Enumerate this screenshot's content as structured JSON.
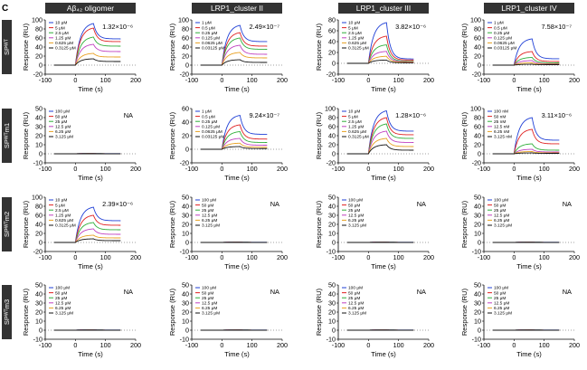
{
  "figure": {
    "panel_letter": "C",
    "column_titles": [
      "Aβ₄₂ oligomer",
      "LRP1_cluster II",
      "LRP1_cluster III",
      "LRP1_cluster IV"
    ],
    "row_titles": [
      "SPᵂᵀ",
      "SPᵂᵀm1",
      "SPᵂᵀm2",
      "SPᵂᵀm3"
    ]
  },
  "colors": {
    "series": [
      "#1f3fd6",
      "#e02020",
      "#2fae3a",
      "#c040c0",
      "#e8a020",
      "#111111"
    ],
    "header_fill": "#333333"
  },
  "chart_data": [
    {
      "type": "line",
      "row": 0,
      "col": 0,
      "xlabel": "Time (s)",
      "ylabel": "Response (RU)",
      "xlim": [
        -100,
        200
      ],
      "ylim": [
        -20,
        100
      ],
      "xticks": [
        -100,
        0,
        100,
        200
      ],
      "yticks": [
        -20,
        0,
        20,
        40,
        60,
        80,
        100
      ],
      "annotation": "1.32×10⁻⁶",
      "legend": [
        "10 μM",
        "5 μM",
        "2.5 μM",
        "1.25 μM",
        "0.625 μM",
        "0.3125 μM"
      ],
      "series": [
        {
          "name": "10 μM",
          "peak": 92,
          "end": 58
        },
        {
          "name": "5 μM",
          "peak": 82,
          "end": 52
        },
        {
          "name": "2.5 μM",
          "peak": 62,
          "end": 42
        },
        {
          "name": "1.25 μM",
          "peak": 46,
          "end": 30
        },
        {
          "name": "0.625 μM",
          "peak": 26,
          "end": 18
        },
        {
          "name": "0.3125 μM",
          "peak": 14,
          "end": 8
        }
      ]
    },
    {
      "type": "line",
      "row": 0,
      "col": 1,
      "xlabel": "Time (s)",
      "ylabel": "Response (RU)",
      "xlim": [
        -100,
        200
      ],
      "ylim": [
        -20,
        100
      ],
      "xticks": [
        -100,
        0,
        100,
        200
      ],
      "yticks": [
        -20,
        0,
        20,
        40,
        60,
        80,
        100
      ],
      "annotation": "2.49×10⁻⁷",
      "legend": [
        "1 μM",
        "0.5 μM",
        "0.25 μM",
        "0.125 μM",
        "0.0625 μM",
        "0.03125 μM"
      ],
      "series": [
        {
          "name": "1 μM",
          "peak": 88,
          "end": 52
        },
        {
          "name": "0.5 μM",
          "peak": 72,
          "end": 42
        },
        {
          "name": "0.25 μM",
          "peak": 60,
          "end": 35
        },
        {
          "name": "0.125 μM",
          "peak": 44,
          "end": 24
        },
        {
          "name": "0.0625 μM",
          "peak": 28,
          "end": 16
        },
        {
          "name": "0.03125 μM",
          "peak": 12,
          "end": 6
        }
      ]
    },
    {
      "type": "line",
      "row": 0,
      "col": 2,
      "xlabel": "Time (s)",
      "ylabel": "Response (RU)",
      "xlim": [
        -100,
        200
      ],
      "ylim": [
        -20,
        80
      ],
      "xticks": [
        -100,
        0,
        100,
        200
      ],
      "yticks": [
        -20,
        0,
        20,
        40,
        60,
        80
      ],
      "annotation": "3.82×10⁻⁶",
      "legend": [
        "10 μM",
        "5 μM",
        "2.5 μM",
        "1.25 μM",
        "0.625 μM",
        "0.3125 μM"
      ],
      "series": [
        {
          "name": "10 μM",
          "peak": 75,
          "end": 8
        },
        {
          "name": "5 μM",
          "peak": 50,
          "end": 6
        },
        {
          "name": "2.5 μM",
          "peak": 34,
          "end": 4
        },
        {
          "name": "1.25 μM",
          "peak": 22,
          "end": 3
        },
        {
          "name": "0.625 μM",
          "peak": 13,
          "end": 2
        },
        {
          "name": "0.3125 μM",
          "peak": 6,
          "end": 1
        }
      ]
    },
    {
      "type": "line",
      "row": 0,
      "col": 3,
      "xlabel": "Time (s)",
      "ylabel": "Response (RU)",
      "xlim": [
        -100,
        200
      ],
      "ylim": [
        -20,
        100
      ],
      "xticks": [
        -100,
        0,
        100,
        200
      ],
      "yticks": [
        -20,
        0,
        20,
        40,
        60,
        80,
        100
      ],
      "annotation": "7.58×10⁻⁷",
      "legend": [
        "1 μM",
        "0.5 μM",
        "0.25 μM",
        "0.125 μM",
        "0.0625 μM",
        "0.03125 μM"
      ],
      "series": [
        {
          "name": "1 μM",
          "peak": 58,
          "end": 14
        },
        {
          "name": "0.5 μM",
          "peak": 30,
          "end": 8
        },
        {
          "name": "0.25 μM",
          "peak": 17,
          "end": 5
        },
        {
          "name": "0.125 μM",
          "peak": 10,
          "end": 3
        },
        {
          "name": "0.0625 μM",
          "peak": 5,
          "end": 2
        },
        {
          "name": "0.03125 μM",
          "peak": 2,
          "end": 1
        }
      ]
    },
    {
      "type": "line",
      "row": 1,
      "col": 0,
      "xlabel": "Time (s)",
      "ylabel": "Response (RU)",
      "xlim": [
        -100,
        200
      ],
      "ylim": [
        -10,
        50
      ],
      "xticks": [
        -100,
        0,
        100,
        200
      ],
      "yticks": [
        -10,
        0,
        10,
        20,
        30,
        40,
        50
      ],
      "annotation": "NA",
      "legend": [
        "100 μM",
        "50 μM",
        "25 μM",
        "12.5 μM",
        "6.25 μM",
        "3.125 μM"
      ],
      "series": [
        {
          "name": "100 μM",
          "peak": 0.5,
          "end": 0.2
        },
        {
          "name": "50 μM",
          "peak": 0.4,
          "end": 0.1
        },
        {
          "name": "25 μM",
          "peak": 0.3,
          "end": 0.1
        },
        {
          "name": "12.5 μM",
          "peak": 0.2,
          "end": 0
        },
        {
          "name": "6.25 μM",
          "peak": 0.1,
          "end": 0
        },
        {
          "name": "3.125 μM",
          "peak": 0,
          "end": 0
        }
      ]
    },
    {
      "type": "line",
      "row": 1,
      "col": 1,
      "xlabel": "Time (s)",
      "ylabel": "Response (RU)",
      "xlim": [
        -100,
        200
      ],
      "ylim": [
        -20,
        60
      ],
      "xticks": [
        -100,
        0,
        100,
        200
      ],
      "yticks": [
        -20,
        0,
        20,
        40,
        60
      ],
      "annotation": "9.24×10⁻⁷",
      "legend": [
        "1 μM",
        "0.5 μM",
        "0.25 μM",
        "0.125 μM",
        "0.0625 μM",
        "0.03125 μM"
      ],
      "series": [
        {
          "name": "1 μM",
          "peak": 50,
          "end": 22
        },
        {
          "name": "0.5 μM",
          "peak": 36,
          "end": 15
        },
        {
          "name": "0.25 μM",
          "peak": 26,
          "end": 10
        },
        {
          "name": "0.125 μM",
          "peak": 16,
          "end": 6
        },
        {
          "name": "0.0625 μM",
          "peak": 9,
          "end": 3
        },
        {
          "name": "0.03125 μM",
          "peak": 4,
          "end": 1
        }
      ]
    },
    {
      "type": "line",
      "row": 1,
      "col": 2,
      "xlabel": "Time (s)",
      "ylabel": "Response (RU)",
      "xlim": [
        -100,
        200
      ],
      "ylim": [
        -20,
        100
      ],
      "xticks": [
        -100,
        0,
        100,
        200
      ],
      "yticks": [
        -20,
        0,
        20,
        40,
        60,
        80,
        100
      ],
      "annotation": "1.28×10⁻⁶",
      "legend": [
        "10 μM",
        "5 μM",
        "2.5 μM",
        "1.25 μM",
        "0.625 μM",
        "0.3125 μM"
      ],
      "series": [
        {
          "name": "10 μM",
          "peak": 95,
          "end": 50
        },
        {
          "name": "5 μM",
          "peak": 80,
          "end": 42
        },
        {
          "name": "2.5 μM",
          "peak": 66,
          "end": 34
        },
        {
          "name": "1.25 μM",
          "peak": 50,
          "end": 25
        },
        {
          "name": "0.625 μM",
          "peak": 34,
          "end": 16
        },
        {
          "name": "0.3125 μM",
          "peak": 20,
          "end": 8
        }
      ]
    },
    {
      "type": "line",
      "row": 1,
      "col": 3,
      "xlabel": "Time (s)",
      "ylabel": "Response (RU)",
      "xlim": [
        -100,
        200
      ],
      "ylim": [
        -20,
        100
      ],
      "xticks": [
        -100,
        0,
        100,
        200
      ],
      "yticks": [
        -20,
        0,
        20,
        40,
        60,
        80,
        100
      ],
      "annotation": "3.11×10⁻⁶",
      "legend": [
        "100 nM",
        "50 nM",
        "25 nM",
        "12.5 nM",
        "6.25 nM",
        "3.125 nM"
      ],
      "series": [
        {
          "name": "100 nM",
          "peak": 80,
          "end": 30
        },
        {
          "name": "50 nM",
          "peak": 54,
          "end": 22
        },
        {
          "name": "25 nM",
          "peak": 22,
          "end": 8
        },
        {
          "name": "12.5 nM",
          "peak": 10,
          "end": 4
        },
        {
          "name": "6.25 nM",
          "peak": 5,
          "end": 2
        },
        {
          "name": "3.125 nM",
          "peak": 2,
          "end": 1
        }
      ]
    },
    {
      "type": "line",
      "row": 2,
      "col": 0,
      "xlabel": "Time (s)",
      "ylabel": "Response (RU)",
      "xlim": [
        -100,
        200
      ],
      "ylim": [
        -20,
        100
      ],
      "xticks": [
        -100,
        0,
        100,
        200
      ],
      "yticks": [
        -20,
        0,
        20,
        40,
        60,
        80,
        100
      ],
      "annotation": "2.39×10⁻⁶",
      "legend": [
        "10 μM",
        "5 μM",
        "2.5 μM",
        "1.25 μM",
        "0.625 μM",
        "0.3125 μM"
      ],
      "series": [
        {
          "name": "10 μM",
          "peak": 78,
          "end": 48
        },
        {
          "name": "5 μM",
          "peak": 60,
          "end": 38
        },
        {
          "name": "2.5 μM",
          "peak": 44,
          "end": 28
        },
        {
          "name": "1.25 μM",
          "peak": 30,
          "end": 18
        },
        {
          "name": "0.625 μM",
          "peak": 16,
          "end": 10
        },
        {
          "name": "0.3125 μM",
          "peak": 8,
          "end": 4
        }
      ]
    },
    {
      "type": "line",
      "row": 2,
      "col": 1,
      "xlabel": "Time (s)",
      "ylabel": "Response (RU)",
      "xlim": [
        -100,
        200
      ],
      "ylim": [
        -10,
        50
      ],
      "xticks": [
        -100,
        0,
        100,
        200
      ],
      "yticks": [
        -10,
        0,
        10,
        20,
        30,
        40,
        50
      ],
      "annotation": "NA",
      "legend": [
        "100 μM",
        "50 μM",
        "25 μM",
        "12.5 μM",
        "6.25 μM",
        "3.125 μM"
      ],
      "series": [
        {
          "name": "100 μM",
          "peak": 0.5,
          "end": 0.2
        },
        {
          "name": "50 μM",
          "peak": 0.4,
          "end": 0.1
        },
        {
          "name": "25 μM",
          "peak": 0.3,
          "end": 0.1
        },
        {
          "name": "12.5 μM",
          "peak": 0.2,
          "end": 0
        },
        {
          "name": "6.25 μM",
          "peak": 0.1,
          "end": 0
        },
        {
          "name": "3.125 μM",
          "peak": 0,
          "end": 0
        }
      ]
    },
    {
      "type": "line",
      "row": 2,
      "col": 2,
      "xlabel": "Time (s)",
      "ylabel": "Response (RU)",
      "xlim": [
        -100,
        200
      ],
      "ylim": [
        -10,
        50
      ],
      "xticks": [
        -100,
        0,
        100,
        200
      ],
      "yticks": [
        -10,
        0,
        10,
        20,
        30,
        40,
        50
      ],
      "annotation": "NA",
      "legend": [
        "100 μM",
        "50 μM",
        "25 μM",
        "12.5 μM",
        "6.25 μM",
        "3.125 μM"
      ],
      "series": [
        {
          "name": "100 μM",
          "peak": 0.5,
          "end": 0.2
        },
        {
          "name": "50 μM",
          "peak": 0.4,
          "end": 0.1
        },
        {
          "name": "25 μM",
          "peak": 0.3,
          "end": 0.1
        },
        {
          "name": "12.5 μM",
          "peak": 0.2,
          "end": 0
        },
        {
          "name": "6.25 μM",
          "peak": 0.1,
          "end": 0
        },
        {
          "name": "3.125 μM",
          "peak": 0,
          "end": 0
        }
      ]
    },
    {
      "type": "line",
      "row": 2,
      "col": 3,
      "xlabel": "Time (s)",
      "ylabel": "Response (RU)",
      "xlim": [
        -100,
        200
      ],
      "ylim": [
        -10,
        50
      ],
      "xticks": [
        -100,
        0,
        100,
        200
      ],
      "yticks": [
        -10,
        0,
        10,
        20,
        30,
        40,
        50
      ],
      "annotation": "NA",
      "legend": [
        "100 μM",
        "50 μM",
        "25 μM",
        "12.5 μM",
        "6.25 μM",
        "3.125 μM"
      ],
      "series": [
        {
          "name": "100 μM",
          "peak": 0.5,
          "end": 0.2
        },
        {
          "name": "50 μM",
          "peak": 0.4,
          "end": 0.1
        },
        {
          "name": "25 μM",
          "peak": 0.3,
          "end": 0.1
        },
        {
          "name": "12.5 μM",
          "peak": 0.2,
          "end": 0
        },
        {
          "name": "6.25 μM",
          "peak": 0.1,
          "end": 0
        },
        {
          "name": "3.125 μM",
          "peak": 0,
          "end": 0
        }
      ]
    },
    {
      "type": "line",
      "row": 3,
      "col": 0,
      "xlabel": "Time (s)",
      "ylabel": "Response (RU)",
      "xlim": [
        -100,
        200
      ],
      "ylim": [
        -10,
        50
      ],
      "xticks": [
        -100,
        0,
        100,
        200
      ],
      "yticks": [
        -10,
        0,
        10,
        20,
        30,
        40,
        50
      ],
      "annotation": "NA",
      "legend": [
        "100 μM",
        "50 μM",
        "25 μM",
        "12.5 μM",
        "6.25 μM",
        "3.125 μM"
      ],
      "series": [
        {
          "name": "100 μM",
          "peak": 0.6,
          "end": 0.2
        },
        {
          "name": "50 μM",
          "peak": 0.4,
          "end": 0.1
        },
        {
          "name": "25 μM",
          "peak": 0.3,
          "end": 0.1
        },
        {
          "name": "12.5 μM",
          "peak": 0.2,
          "end": 0
        },
        {
          "name": "6.25 μM",
          "peak": 0.1,
          "end": 0
        },
        {
          "name": "3.125 μM",
          "peak": 0,
          "end": 0
        }
      ]
    },
    {
      "type": "line",
      "row": 3,
      "col": 1,
      "xlabel": "Time (s)",
      "ylabel": "Response (RU)",
      "xlim": [
        -100,
        200
      ],
      "ylim": [
        -10,
        50
      ],
      "xticks": [
        -100,
        0,
        100,
        200
      ],
      "yticks": [
        -10,
        0,
        10,
        20,
        30,
        40,
        50
      ],
      "annotation": "NA",
      "legend": [
        "100 μM",
        "50 μM",
        "25 μM",
        "12.5 μM",
        "6.25 μM",
        "3.125 μM"
      ],
      "series": [
        {
          "name": "100 μM",
          "peak": 0.5,
          "end": 0.2
        },
        {
          "name": "50 μM",
          "peak": 0.4,
          "end": 0.1
        },
        {
          "name": "25 μM",
          "peak": 0.3,
          "end": 0.1
        },
        {
          "name": "12.5 μM",
          "peak": 0.2,
          "end": 0
        },
        {
          "name": "6.25 μM",
          "peak": 0.1,
          "end": 0
        },
        {
          "name": "3.125 μM",
          "peak": 0,
          "end": 0
        }
      ]
    },
    {
      "type": "line",
      "row": 3,
      "col": 2,
      "xlabel": "Time (s)",
      "ylabel": "Response (RU)",
      "xlim": [
        -100,
        200
      ],
      "ylim": [
        -10,
        50
      ],
      "xticks": [
        -100,
        0,
        100,
        200
      ],
      "yticks": [
        -10,
        0,
        10,
        20,
        30,
        40,
        50
      ],
      "annotation": "NA",
      "legend": [
        "100 μM",
        "50 μM",
        "25 μM",
        "12.5 μM",
        "6.25 μM",
        "3.125 μM"
      ],
      "series": [
        {
          "name": "100 μM",
          "peak": 0.5,
          "end": 0.2
        },
        {
          "name": "50 μM",
          "peak": 0.4,
          "end": 0.1
        },
        {
          "name": "25 μM",
          "peak": 0.3,
          "end": 0.1
        },
        {
          "name": "12.5 μM",
          "peak": 0.2,
          "end": 0
        },
        {
          "name": "6.25 μM",
          "peak": 0.1,
          "end": 0
        },
        {
          "name": "3.125 μM",
          "peak": 0,
          "end": 0
        }
      ]
    },
    {
      "type": "line",
      "row": 3,
      "col": 3,
      "xlabel": "Time (s)",
      "ylabel": "Response (RU)",
      "xlim": [
        -100,
        200
      ],
      "ylim": [
        -10,
        50
      ],
      "xticks": [
        -100,
        0,
        100,
        200
      ],
      "yticks": [
        -10,
        0,
        10,
        20,
        30,
        40,
        50
      ],
      "annotation": "NA",
      "legend": [
        "100 μM",
        "50 μM",
        "25 μM",
        "12.5 μM",
        "6.25 μM",
        "3.125 μM"
      ],
      "series": [
        {
          "name": "100 μM",
          "peak": 0.5,
          "end": 0.2
        },
        {
          "name": "50 μM",
          "peak": 0.4,
          "end": 0.1
        },
        {
          "name": "25 μM",
          "peak": 0.3,
          "end": 0.1
        },
        {
          "name": "12.5 μM",
          "peak": 0.2,
          "end": 0
        },
        {
          "name": "6.25 μM",
          "peak": 0.1,
          "end": 0
        },
        {
          "name": "3.125 μM",
          "peak": 0,
          "end": 0
        }
      ]
    }
  ]
}
